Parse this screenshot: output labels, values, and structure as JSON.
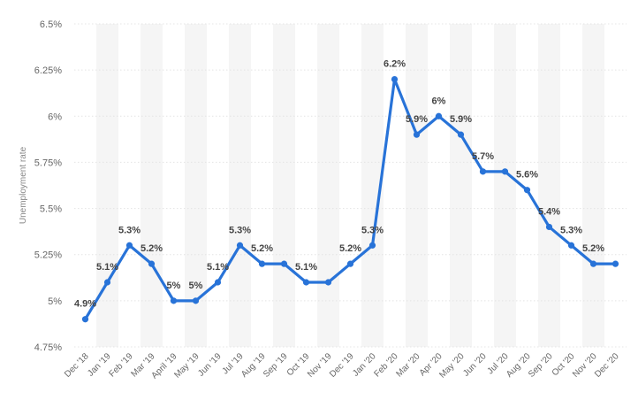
{
  "chart_data": {
    "type": "line",
    "title": "",
    "xlabel": "",
    "ylabel": "Unemployment rate",
    "ylim": [
      4.75,
      6.5
    ],
    "yticks": [
      "4.75%",
      "5%",
      "5.25%",
      "5.5%",
      "5.75%",
      "6%",
      "6.25%",
      "6.5%"
    ],
    "ytick_values": [
      4.75,
      5,
      5.25,
      5.5,
      5.75,
      6,
      6.25,
      6.5
    ],
    "grid": true,
    "categories": [
      "Dec '18",
      "Jan '19",
      "Feb '19",
      "Mar '19",
      "April '19",
      "May '19",
      "Jun '19",
      "Jul '19",
      "Aug '19",
      "Sep '19",
      "Oct '19",
      "Nov '19",
      "Dec '19",
      "Jan '20",
      "Feb '20",
      "Mar '20",
      "Apr '20",
      "May '20",
      "Jun '20",
      "Jul '20",
      "Aug '20",
      "Sep '20",
      "Oct '20",
      "Nov '20",
      "Dec '20"
    ],
    "series": [
      {
        "values": [
          4.9,
          5.1,
          5.3,
          5.2,
          5.0,
          5.0,
          5.1,
          5.3,
          5.2,
          5.2,
          5.1,
          5.1,
          5.2,
          5.3,
          6.2,
          5.9,
          6.0,
          5.9,
          5.7,
          5.7,
          5.6,
          5.4,
          5.3,
          5.2,
          5.2
        ],
        "labels": [
          "4.9%",
          "5.1%",
          "5.3%",
          "5.2%",
          "5%",
          "5%",
          "5.1%",
          "5.3%",
          "5.2%",
          "",
          "5.1%",
          "",
          "5.2%",
          "5.3%",
          "6.2%",
          "5.9%",
          "6%",
          "5.9%",
          "5.7%",
          "",
          "5.6%",
          "5.4%",
          "5.3%",
          "5.2%",
          ""
        ],
        "color": "#2873d8"
      }
    ],
    "band_color": "#f5f5f5"
  }
}
